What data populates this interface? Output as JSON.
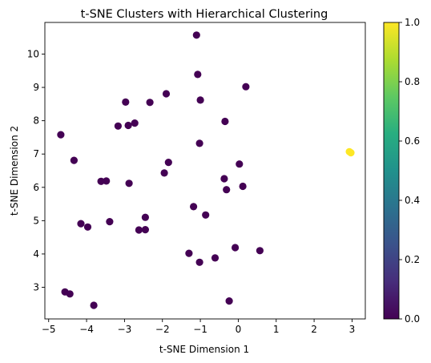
{
  "chart_data": {
    "type": "scatter",
    "title": "t-SNE Clusters with Hierarchical Clustering",
    "xlabel": "t-SNE Dimension 1",
    "ylabel": "t-SNE Dimension 2",
    "xlim": [
      -5.1,
      3.35
    ],
    "ylim": [
      2.05,
      10.95
    ],
    "xticks": [
      -5,
      -4,
      -3,
      -2,
      -1,
      0,
      1,
      2,
      3
    ],
    "xtick_labels": [
      "−5",
      "−4",
      "−3",
      "−2",
      "−1",
      "0",
      "1",
      "2",
      "3"
    ],
    "yticks": [
      3,
      4,
      5,
      6,
      7,
      8,
      9,
      10
    ],
    "ytick_labels": [
      "3",
      "4",
      "5",
      "6",
      "7",
      "8",
      "9",
      "10"
    ],
    "grid": false,
    "colormap": "viridis",
    "colorbar": {
      "range": [
        0.0,
        1.0
      ],
      "ticks": [
        0.0,
        0.2,
        0.4,
        0.6,
        0.8,
        1.0
      ],
      "tick_labels": [
        "0.0",
        "0.2",
        "0.4",
        "0.6",
        "0.8",
        "1.0"
      ]
    },
    "colors": {
      "cluster_0": "#440154",
      "cluster_1": "#fde725"
    },
    "points": [
      {
        "x": -1.1,
        "y": 10.57,
        "c": 0
      },
      {
        "x": -1.07,
        "y": 9.39,
        "c": 0
      },
      {
        "x": 0.2,
        "y": 9.02,
        "c": 0
      },
      {
        "x": -1.9,
        "y": 8.81,
        "c": 0
      },
      {
        "x": -1.0,
        "y": 8.62,
        "c": 0
      },
      {
        "x": -2.97,
        "y": 8.56,
        "c": 0
      },
      {
        "x": -2.33,
        "y": 8.55,
        "c": 0
      },
      {
        "x": -0.35,
        "y": 7.98,
        "c": 0
      },
      {
        "x": -2.73,
        "y": 7.93,
        "c": 0
      },
      {
        "x": -2.9,
        "y": 7.86,
        "c": 0
      },
      {
        "x": -3.17,
        "y": 7.84,
        "c": 0
      },
      {
        "x": -4.68,
        "y": 7.58,
        "c": 0
      },
      {
        "x": -1.02,
        "y": 7.32,
        "c": 0
      },
      {
        "x": -4.33,
        "y": 6.81,
        "c": 0
      },
      {
        "x": -1.84,
        "y": 6.75,
        "c": 0
      },
      {
        "x": 0.03,
        "y": 6.7,
        "c": 0
      },
      {
        "x": -1.95,
        "y": 6.43,
        "c": 0
      },
      {
        "x": -0.37,
        "y": 6.26,
        "c": 0
      },
      {
        "x": -3.62,
        "y": 6.18,
        "c": 0
      },
      {
        "x": -3.48,
        "y": 6.19,
        "c": 0
      },
      {
        "x": -2.88,
        "y": 6.12,
        "c": 0
      },
      {
        "x": 0.12,
        "y": 6.03,
        "c": 0
      },
      {
        "x": -0.31,
        "y": 5.93,
        "c": 0
      },
      {
        "x": -1.18,
        "y": 5.42,
        "c": 0
      },
      {
        "x": -0.86,
        "y": 5.17,
        "c": 0
      },
      {
        "x": -2.45,
        "y": 5.1,
        "c": 0
      },
      {
        "x": -3.39,
        "y": 4.97,
        "c": 0
      },
      {
        "x": -4.15,
        "y": 4.91,
        "c": 0
      },
      {
        "x": -3.97,
        "y": 4.81,
        "c": 0
      },
      {
        "x": -2.45,
        "y": 4.73,
        "c": 0
      },
      {
        "x": -2.62,
        "y": 4.72,
        "c": 0
      },
      {
        "x": 0.57,
        "y": 4.1,
        "c": 0
      },
      {
        "x": -0.08,
        "y": 4.19,
        "c": 0
      },
      {
        "x": -1.3,
        "y": 4.02,
        "c": 0
      },
      {
        "x": -0.61,
        "y": 3.88,
        "c": 0
      },
      {
        "x": -1.02,
        "y": 3.75,
        "c": 0
      },
      {
        "x": -4.57,
        "y": 2.86,
        "c": 0
      },
      {
        "x": -4.44,
        "y": 2.8,
        "c": 0
      },
      {
        "x": -0.24,
        "y": 2.59,
        "c": 0
      },
      {
        "x": -3.81,
        "y": 2.46,
        "c": 0
      },
      {
        "x": 2.93,
        "y": 7.07,
        "c": 1
      },
      {
        "x": 2.97,
        "y": 7.04,
        "c": 1
      }
    ]
  }
}
